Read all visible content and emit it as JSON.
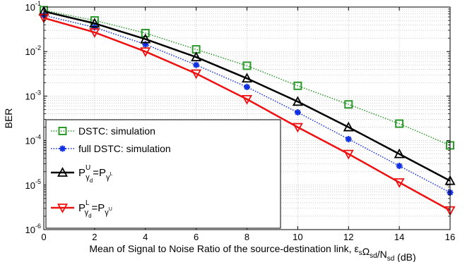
{
  "chart_data": {
    "type": "line",
    "title": "",
    "xlabel": {
      "text": "Mean of Signal to Noise Ratio of the source-destination link, ",
      "math_parts": [
        {
          "text": "ε",
          "sub": "s"
        },
        {
          "text": "Ω",
          "sub": "sd"
        },
        {
          "text": "/N",
          "sub": "sd"
        }
      ],
      "unit": "(dB)"
    },
    "ylabel": "BER",
    "xlim": [
      0,
      16
    ],
    "ylim": [
      1e-06,
      0.1
    ],
    "yscale": "log",
    "grid": true,
    "x_ticks": [
      "0",
      "2",
      "4",
      "6",
      "8",
      "10",
      "12",
      "14",
      "16"
    ],
    "y_ticks": [
      {
        "base": "10",
        "exp": "-6"
      },
      {
        "base": "10",
        "exp": "-5"
      },
      {
        "base": "10",
        "exp": "-4"
      },
      {
        "base": "10",
        "exp": "-3"
      },
      {
        "base": "10",
        "exp": "-2"
      },
      {
        "base": "10",
        "exp": "-1"
      }
    ],
    "x": [
      0,
      2,
      4,
      6,
      8,
      10,
      12,
      14,
      16
    ],
    "series": [
      {
        "name": "DSTC: simulation",
        "color": "#2a9a2a",
        "line_style": "dotted",
        "marker": "square",
        "values": [
          0.085,
          0.05,
          0.026,
          0.0112,
          0.0048,
          0.0017,
          0.00065,
          0.00024,
          7.8e-05
        ]
      },
      {
        "name": "full DSTC: simulation",
        "color": "#1030e0",
        "line_style": "dotted",
        "marker": "asterisk",
        "values": [
          0.065,
          0.035,
          0.0145,
          0.005,
          0.0016,
          0.00043,
          0.000108,
          2.7e-05,
          6.8e-06
        ]
      },
      {
        "name": "",
        "legend_math": {
          "lhs_base": "P",
          "lhs_sup": "U",
          "lhs_sub": "γ",
          "lhs_subsub": "d",
          "rhs_base": "=P",
          "rhs_sub": "γ",
          "rhs_subsup": "L"
        },
        "color": "#000000",
        "line_style": "solid",
        "marker": "triangle-up",
        "values": [
          0.08,
          0.043,
          0.019,
          0.0075,
          0.0025,
          0.00075,
          0.0002,
          5e-05,
          1.25e-05
        ]
      },
      {
        "name": "",
        "legend_math": {
          "lhs_base": "P",
          "lhs_sup": "L",
          "lhs_sub": "γ",
          "lhs_subsub": "d",
          "rhs_base": "=P",
          "rhs_sub": "γ",
          "rhs_subsup": "U"
        },
        "color": "#ee1111",
        "line_style": "solid",
        "marker": "triangle-down",
        "values": [
          0.057,
          0.027,
          0.01,
          0.0032,
          0.00085,
          0.0002,
          5e-05,
          1.15e-05,
          2.7e-06
        ]
      }
    ],
    "legend_position": "bottom-left"
  }
}
